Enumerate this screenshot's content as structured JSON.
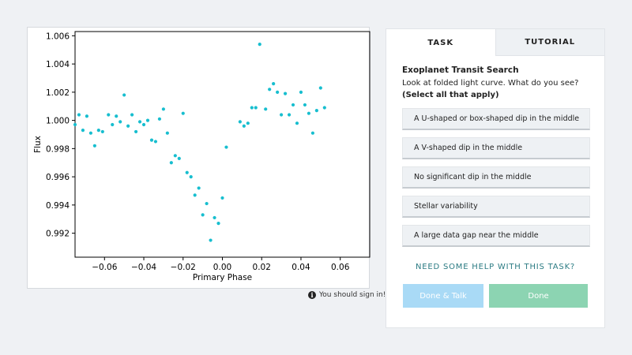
{
  "plot": {
    "chart_data": {
      "type": "scatter",
      "title": "",
      "xlabel": "Primary Phase",
      "ylabel": "Flux",
      "xlim": [
        -0.075,
        0.075
      ],
      "ylim": [
        0.9903,
        1.0063
      ],
      "xticks": [
        -0.06,
        -0.04,
        -0.02,
        0.0,
        0.02,
        0.04,
        0.06
      ],
      "xtick_labels": [
        "−0.06",
        "−0.04",
        "−0.02",
        "0.00",
        "0.02",
        "0.04",
        "0.06"
      ],
      "yticks": [
        0.992,
        0.994,
        0.996,
        0.998,
        1.0,
        1.002,
        1.004,
        1.006
      ],
      "ytick_labels": [
        "0.992",
        "0.994",
        "0.996",
        "0.998",
        "1.000",
        "1.002",
        "1.004",
        "1.006"
      ],
      "marker_color": "#17becf",
      "points": [
        [
          -0.075,
          0.9997
        ],
        [
          -0.073,
          1.0004
        ],
        [
          -0.071,
          0.9993
        ],
        [
          -0.069,
          1.0003
        ],
        [
          -0.067,
          0.9991
        ],
        [
          -0.065,
          0.9982
        ],
        [
          -0.063,
          0.9993
        ],
        [
          -0.061,
          0.9992
        ],
        [
          -0.058,
          1.0004
        ],
        [
          -0.056,
          0.9997
        ],
        [
          -0.054,
          1.0003
        ],
        [
          -0.052,
          0.9999
        ],
        [
          -0.05,
          1.0018
        ],
        [
          -0.048,
          0.9996
        ],
        [
          -0.046,
          1.0004
        ],
        [
          -0.044,
          0.9992
        ],
        [
          -0.042,
          0.9999
        ],
        [
          -0.04,
          0.9997
        ],
        [
          -0.038,
          1.0
        ],
        [
          -0.036,
          0.9986
        ],
        [
          -0.034,
          0.9985
        ],
        [
          -0.032,
          1.0001
        ],
        [
          -0.03,
          1.0008
        ],
        [
          -0.028,
          0.9991
        ],
        [
          -0.026,
          0.997
        ],
        [
          -0.024,
          0.9975
        ],
        [
          -0.022,
          0.9973
        ],
        [
          -0.02,
          1.0005
        ],
        [
          -0.018,
          0.9963
        ],
        [
          -0.016,
          0.996
        ],
        [
          -0.014,
          0.9947
        ],
        [
          -0.012,
          0.9952
        ],
        [
          -0.01,
          0.9933
        ],
        [
          -0.008,
          0.9941
        ],
        [
          -0.006,
          0.9915
        ],
        [
          -0.004,
          0.9931
        ],
        [
          -0.002,
          0.9927
        ],
        [
          0.0,
          0.9945
        ],
        [
          0.002,
          0.9981
        ],
        [
          0.009,
          0.9999
        ],
        [
          0.011,
          0.9996
        ],
        [
          0.013,
          0.9998
        ],
        [
          0.015,
          1.0009
        ],
        [
          0.017,
          1.0009
        ],
        [
          0.019,
          1.0054
        ],
        [
          0.022,
          1.0008
        ],
        [
          0.024,
          1.0022
        ],
        [
          0.026,
          1.0026
        ],
        [
          0.028,
          1.002
        ],
        [
          0.03,
          1.0004
        ],
        [
          0.032,
          1.0019
        ],
        [
          0.034,
          1.0004
        ],
        [
          0.036,
          1.0011
        ],
        [
          0.038,
          0.9998
        ],
        [
          0.04,
          1.002
        ],
        [
          0.042,
          1.0011
        ],
        [
          0.044,
          1.0005
        ],
        [
          0.046,
          0.9991
        ],
        [
          0.048,
          1.0007
        ],
        [
          0.05,
          1.0023
        ],
        [
          0.052,
          1.0009
        ]
      ]
    }
  },
  "signin": {
    "icon": "info-icon",
    "text": "You should sign in!"
  },
  "tabs": {
    "task": "TASK",
    "tutorial": "TUTORIAL"
  },
  "task": {
    "title": "Exoplanet Transit Search",
    "question": "Look at folded light curve. What do you see?",
    "instruction": "(Select all that apply)",
    "answers": [
      "A U-shaped or box-shaped dip in the middle",
      "A V-shaped dip in the middle",
      "No significant dip in the middle",
      "Stellar variability",
      "A large data gap near the middle"
    ],
    "help": "NEED SOME HELP WITH THIS TASK?",
    "done_talk": "Done & Talk",
    "done": "Done"
  },
  "colors": {
    "accent_teal": "#2b7b83",
    "done_talk_bg": "#a9daf6",
    "done_bg": "#8cd4b2",
    "points": "#17becf"
  }
}
